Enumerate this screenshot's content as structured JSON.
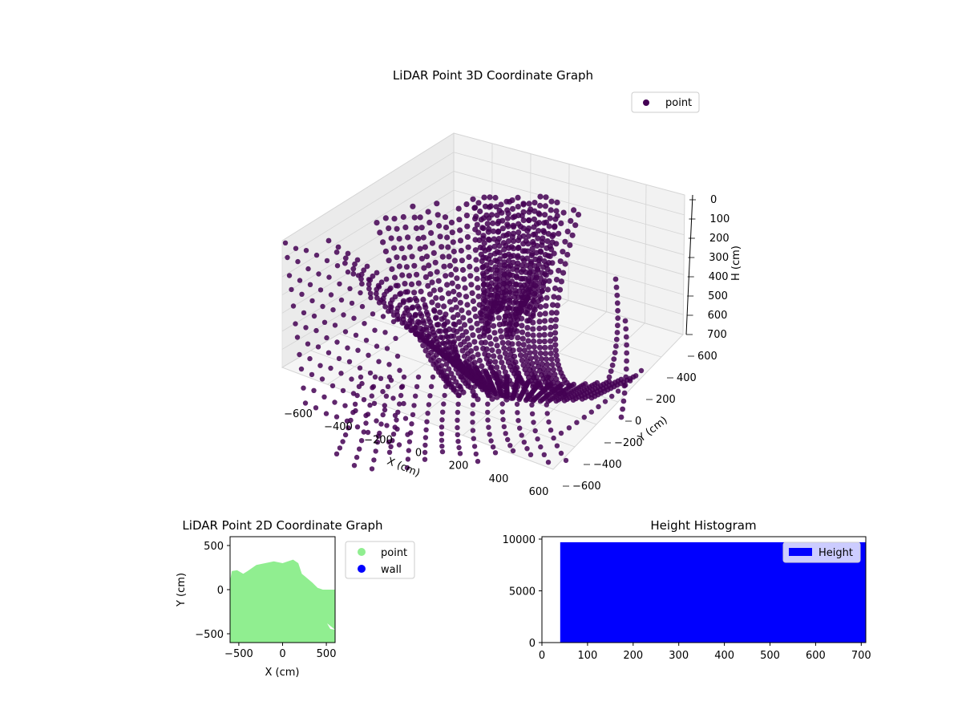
{
  "chart_data": [
    {
      "type": "scatter",
      "panel": "3d",
      "title": "LiDAR Point 3D Coordinate Graph",
      "xlabel": "X (cm)",
      "ylabel": "Y (cm)",
      "zlabel": "H (cm)",
      "xticks": [
        "−600",
        "−400",
        "−200",
        "0",
        "200",
        "400",
        "600"
      ],
      "yticks": [
        "−600",
        "−400",
        "−200",
        "0",
        "200",
        "400",
        "600"
      ],
      "zticks": [
        "0",
        "100",
        "200",
        "300",
        "400",
        "500",
        "600",
        "700"
      ],
      "xlim": [
        -600,
        600
      ],
      "ylim": [
        -600,
        600
      ],
      "zlim": [
        0,
        700
      ],
      "z_inverted": true,
      "grid": true,
      "legend": {
        "entries": [
          "point"
        ],
        "placement": "top-right"
      },
      "series": [
        {
          "name": "point",
          "color": "#440154"
        }
      ]
    },
    {
      "type": "scatter",
      "panel": "2d",
      "title": "LiDAR Point 2D Coordinate Graph",
      "xlabel": "X (cm)",
      "ylabel": "Y (cm)",
      "xticks": [
        "−500",
        "0",
        "500"
      ],
      "yticks": [
        "−500",
        "0",
        "500"
      ],
      "xlim": [
        -600,
        600
      ],
      "ylim": [
        -600,
        600
      ],
      "legend": {
        "entries": [
          "point",
          "wall"
        ],
        "placement": "outside-right"
      },
      "series": [
        {
          "name": "point",
          "color": "#90ee90",
          "upper_boundary": [
            [
              -600,
              100
            ],
            [
              -580,
              210
            ],
            [
              -520,
              220
            ],
            [
              -450,
              180
            ],
            [
              -400,
              210
            ],
            [
              -300,
              280
            ],
            [
              -200,
              300
            ],
            [
              -100,
              320
            ],
            [
              0,
              300
            ],
            [
              60,
              320
            ],
            [
              120,
              340
            ],
            [
              180,
              300
            ],
            [
              220,
              180
            ],
            [
              280,
              130
            ],
            [
              340,
              80
            ],
            [
              400,
              20
            ],
            [
              460,
              0
            ],
            [
              600,
              0
            ]
          ]
        },
        {
          "name": "wall",
          "color": "#0000ff"
        }
      ]
    },
    {
      "type": "bar",
      "panel": "histogram",
      "title": "Height Histogram",
      "xticks": [
        "0",
        "100",
        "200",
        "300",
        "400",
        "500",
        "600",
        "700"
      ],
      "yticks": [
        "0",
        "5000",
        "10000"
      ],
      "xlim": [
        0,
        710
      ],
      "ylim": [
        0,
        10000
      ],
      "legend": {
        "entries": [
          "Height"
        ],
        "placement": "top-right"
      },
      "series": [
        {
          "name": "Height",
          "color": "#0000ff",
          "x_range": [
            40,
            710
          ],
          "value": 9700
        }
      ]
    }
  ]
}
